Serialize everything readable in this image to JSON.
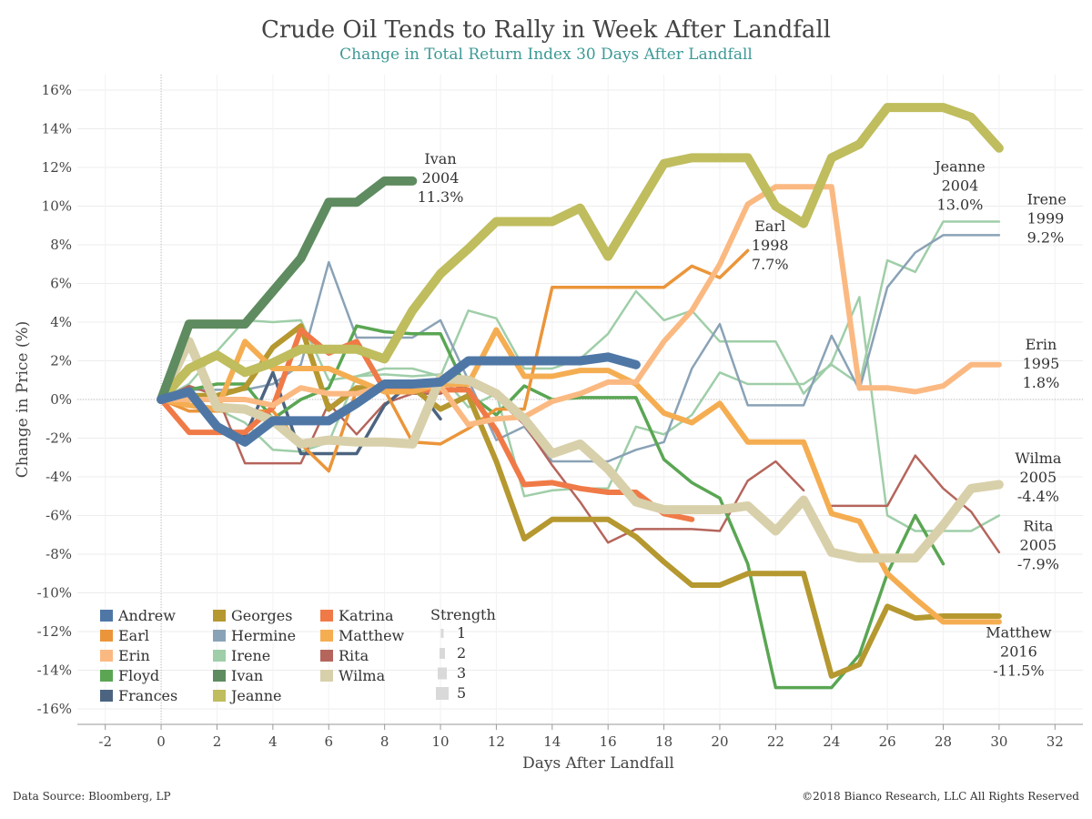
{
  "header": {
    "title": "Crude Oil Tends to Rally in Week After Landfall",
    "subtitle": "Change in Total Return Index 30 Days After Landfall"
  },
  "footer": {
    "source": "Data Source: Bloomberg, LP",
    "copyright": "©2018 Bianco Research, LLC All Rights Reserved"
  },
  "chart_data": {
    "type": "line",
    "title": "Crude Oil Tends to Rally in Week After Landfall",
    "subtitle": "Change in Total Return Index 30 Days After Landfall",
    "xlabel": "Days After Landfall",
    "ylabel": "Change in Price (%)",
    "xlim": [
      -3,
      33
    ],
    "ylim": [
      -16.8,
      16.8
    ],
    "x_ticks": [
      -2,
      0,
      2,
      4,
      6,
      8,
      10,
      12,
      14,
      16,
      18,
      20,
      22,
      24,
      26,
      28,
      30,
      32
    ],
    "x_tick_labels": [
      "-2",
      "0",
      "2",
      "4",
      "6",
      "8",
      "10",
      "12",
      "14",
      "16",
      "18",
      "20",
      "22",
      "24",
      "26",
      "28",
      "30",
      "32"
    ],
    "y_ticks": [
      16,
      14,
      12,
      10,
      8,
      6,
      4,
      2,
      0,
      -2,
      -4,
      -6,
      -8,
      -10,
      -12,
      -14,
      -16
    ],
    "y_tick_labels": [
      "16%",
      "14%",
      "12%",
      "10%",
      "8%",
      "6%",
      "4%",
      "2%",
      "0%",
      "-2%",
      "-4%",
      "-6%",
      "-8%",
      "-10%",
      "-12%",
      "-14%",
      "-16%"
    ],
    "grid": true,
    "legend_position": "bottom-left",
    "series": [
      {
        "name": "Irene",
        "color": "#9fcea8",
        "strength": 1,
        "x": [
          0,
          1,
          2,
          3,
          4,
          5,
          6,
          7,
          8,
          9,
          10,
          11,
          12,
          13,
          14,
          15,
          16,
          17,
          18,
          19,
          20,
          21,
          22,
          23,
          24,
          25,
          26,
          27,
          28,
          29,
          30
        ],
        "values": [
          0,
          -0.2,
          -0.5,
          -1.2,
          -2.6,
          -2.7,
          -2.2,
          1.2,
          1.3,
          1.2,
          1.3,
          -0.4,
          0.3,
          -5.0,
          -4.7,
          -4.6,
          -4.6,
          -1.4,
          -1.8,
          -0.8,
          1.4,
          0.8,
          0.8,
          0.8,
          1.8,
          0.8,
          7.2,
          6.6,
          9.2,
          9.2,
          9.2
        ]
      },
      {
        "name": "Irene (path 2)",
        "color": "#9fcea8",
        "strength": 1,
        "x": [
          0,
          1,
          2,
          3,
          4,
          5,
          6,
          7,
          8,
          9,
          10,
          11,
          12,
          13,
          14,
          15,
          16,
          17,
          18,
          19,
          20,
          21,
          22,
          23,
          24,
          25,
          26,
          27,
          28,
          29,
          30
        ],
        "values": [
          0,
          0.8,
          2.5,
          4.1,
          4.0,
          4.1,
          1.0,
          1.2,
          1.6,
          1.6,
          1.2,
          4.6,
          4.2,
          1.6,
          1.6,
          2.1,
          3.4,
          5.6,
          4.1,
          4.6,
          3.0,
          3.0,
          3.0,
          0.3,
          1.9,
          5.3,
          -6.0,
          -6.8,
          -6.8,
          -6.8,
          -6.0
        ]
      },
      {
        "name": "Hermine",
        "color": "#8aa2b6",
        "strength": 1,
        "x": [
          0,
          1,
          2,
          3,
          4,
          5,
          6,
          7,
          8,
          9,
          10,
          11,
          12,
          13,
          14,
          15,
          16,
          17,
          18,
          19,
          20,
          21,
          22,
          23,
          24,
          25,
          26,
          27,
          28,
          29,
          30
        ],
        "values": [
          0,
          0.5,
          0.5,
          0.5,
          0.8,
          1.8,
          7.1,
          3.2,
          3.2,
          3.2,
          4.1,
          1.0,
          -2.1,
          -1.4,
          -3.2,
          -3.2,
          -3.2,
          -2.6,
          -2.2,
          1.6,
          3.9,
          -0.3,
          -0.3,
          -0.3,
          3.3,
          0.5,
          5.8,
          7.6,
          8.5,
          8.5,
          8.5
        ]
      },
      {
        "name": "Rita",
        "color": "#b5655c",
        "strength": 1,
        "x": [
          0,
          1,
          2,
          3,
          4,
          5,
          6,
          7,
          8,
          9,
          10,
          11,
          12,
          13,
          14,
          15,
          16,
          17,
          18,
          19,
          20,
          21,
          22,
          23
        ],
        "values": [
          0,
          0.7,
          0.2,
          -3.3,
          -3.3,
          -3.3,
          -0.2,
          -1.8,
          -0.2,
          0.3,
          0.3,
          0.8,
          0.1,
          -1.3,
          -3.4,
          -5.3,
          -7.4,
          -6.7,
          -6.7,
          -6.7,
          -6.8,
          -4.2,
          -3.2,
          -4.7
        ]
      },
      {
        "name": "Rita (end)",
        "color": "#b5655c",
        "strength": 1,
        "x": [
          24,
          25,
          26,
          27,
          28,
          29,
          30
        ],
        "values": [
          -5.5,
          -5.5,
          -5.5,
          -2.9,
          -4.6,
          -5.8,
          -7.9
        ]
      },
      {
        "name": "Frances",
        "color": "#4c6480",
        "strength": 2,
        "x": [
          0,
          1,
          2,
          3,
          4,
          5,
          6,
          7,
          8,
          9,
          10
        ],
        "values": [
          0,
          0.5,
          -1.3,
          -1.9,
          1.4,
          -2.8,
          -2.8,
          -2.8,
          -0.3,
          0.9,
          -1.0
        ]
      },
      {
        "name": "Floyd",
        "color": "#5aa653",
        "strength": 2,
        "x": [
          0,
          1,
          2,
          3,
          4,
          5,
          6,
          7,
          8,
          9,
          10,
          11,
          12,
          13,
          14,
          15,
          16,
          17,
          18,
          19,
          20,
          21,
          22,
          23,
          24,
          25,
          26,
          27,
          28
        ],
        "values": [
          0,
          0.5,
          0.8,
          0.8,
          -1.0,
          0.0,
          0.6,
          3.8,
          3.5,
          3.4,
          3.4,
          0.3,
          -0.8,
          0.7,
          0.0,
          0.1,
          0.1,
          0.1,
          -3.1,
          -4.3,
          -5.1,
          -8.5,
          -14.9,
          -14.9,
          -14.9,
          -13.2,
          -9.0,
          -6.0,
          -8.5
        ]
      },
      {
        "name": "Earl",
        "color": "#eb953a",
        "strength": 2,
        "x": [
          0,
          1,
          2,
          3,
          4,
          5,
          6,
          7,
          8,
          9,
          10,
          11,
          12,
          13,
          14,
          15,
          16,
          17,
          18,
          19,
          20,
          21
        ],
        "values": [
          0,
          -0.6,
          -0.6,
          -0.6,
          -0.6,
          -2.3,
          -3.7,
          0.5,
          0.5,
          -2.2,
          -2.3,
          -1.5,
          -0.5,
          -0.5,
          5.8,
          5.8,
          5.8,
          5.8,
          5.8,
          6.9,
          6.3,
          7.7
        ]
      },
      {
        "name": "Georges",
        "color": "#b5982f",
        "strength": 3,
        "x": [
          0,
          1,
          2,
          3,
          4,
          5,
          6,
          7,
          8,
          9,
          10,
          11,
          12,
          13,
          14,
          15,
          16,
          17,
          18,
          19,
          20,
          21,
          22,
          23,
          24,
          25,
          26,
          27,
          28,
          29,
          30
        ],
        "values": [
          0,
          0.2,
          0.2,
          0.6,
          2.7,
          3.8,
          -0.5,
          0.6,
          0.6,
          0.6,
          -0.5,
          0.2,
          -3.2,
          -7.2,
          -6.2,
          -6.2,
          -6.2,
          -7.1,
          -8.4,
          -9.6,
          -9.6,
          -9.0,
          -9.0,
          -9.0,
          -14.3,
          -13.7,
          -10.7,
          -11.3,
          -11.2,
          -11.2,
          -11.2
        ]
      },
      {
        "name": "Katrina",
        "color": "#f07a47",
        "strength": 3,
        "x": [
          0,
          1,
          2,
          3,
          4,
          5,
          6,
          7,
          8,
          9,
          10,
          11,
          12,
          13,
          14,
          15,
          16,
          17,
          18,
          19
        ],
        "values": [
          0,
          -1.7,
          -1.7,
          -1.7,
          -0.4,
          3.6,
          2.4,
          3.0,
          0.5,
          0.5,
          0.5,
          0.5,
          -1.6,
          -4.4,
          -4.3,
          -4.6,
          -4.8,
          -4.8,
          -5.9,
          -6.2
        ]
      },
      {
        "name": "Matthew",
        "color": "#f5ad52",
        "strength": 3,
        "x": [
          0,
          1,
          2,
          3,
          4,
          5,
          6,
          7,
          8,
          9,
          10,
          11,
          12,
          13,
          14,
          15,
          16,
          17,
          18,
          19,
          20,
          21,
          22,
          23,
          24,
          25,
          26,
          27,
          28,
          29,
          30
        ],
        "values": [
          0,
          -0.3,
          -0.5,
          3.0,
          1.6,
          1.6,
          1.6,
          1.0,
          0.4,
          0.4,
          0.8,
          0.8,
          3.6,
          1.2,
          1.2,
          1.5,
          1.5,
          0.8,
          -0.7,
          -1.2,
          -0.2,
          -2.2,
          -2.2,
          -2.2,
          -5.9,
          -6.3,
          -9.0,
          -10.3,
          -11.5,
          -11.5,
          -11.5
        ]
      },
      {
        "name": "Erin",
        "color": "#fbb982",
        "strength": 3,
        "x": [
          0,
          1,
          2,
          3,
          4,
          5,
          6,
          7,
          8,
          9,
          10,
          11,
          12,
          13,
          14,
          15,
          16,
          17,
          18,
          19,
          20,
          21,
          22,
          23,
          24,
          25,
          26,
          27,
          28,
          29,
          30
        ],
        "values": [
          0,
          0.0,
          0.0,
          0.0,
          -0.3,
          0.6,
          0.3,
          0.3,
          0.7,
          0.7,
          0.7,
          -1.3,
          -1.0,
          -0.9,
          -0.1,
          0.3,
          0.9,
          0.9,
          3.0,
          4.6,
          7.0,
          10.1,
          11.0,
          11.0,
          11.0,
          0.6,
          0.6,
          0.4,
          0.7,
          1.8,
          1.8
        ]
      },
      {
        "name": "Wilma",
        "color": "#d8d0aa",
        "strength": 5,
        "x": [
          0,
          1,
          2,
          3,
          4,
          5,
          6,
          7,
          8,
          9,
          10,
          11,
          12,
          13,
          14,
          15,
          16,
          17,
          18,
          19,
          20,
          21,
          22,
          23,
          24,
          25,
          26,
          27,
          28,
          29,
          30
        ],
        "values": [
          0,
          3.0,
          -0.4,
          -0.5,
          -1.1,
          -2.3,
          -2.1,
          -2.2,
          -2.2,
          -2.3,
          1.1,
          1.0,
          0.3,
          -1.0,
          -2.8,
          -2.3,
          -3.6,
          -5.3,
          -5.7,
          -5.7,
          -5.7,
          -5.5,
          -6.8,
          -5.2,
          -7.9,
          -8.2,
          -8.2,
          -8.2,
          -6.5,
          -4.6,
          -4.4
        ]
      },
      {
        "name": "Jeanne",
        "color": "#bfbd5d",
        "strength": 5,
        "x": [
          0,
          1,
          2,
          3,
          4,
          5,
          6,
          7,
          8,
          9,
          10,
          11,
          12,
          13,
          14,
          15,
          16,
          17,
          18,
          19,
          20,
          21,
          22,
          23,
          24,
          25,
          26,
          27,
          28,
          29,
          30
        ],
        "values": [
          0,
          1.6,
          2.3,
          1.4,
          1.9,
          2.6,
          2.6,
          2.6,
          2.1,
          4.6,
          6.5,
          7.8,
          9.2,
          9.2,
          9.2,
          9.9,
          7.4,
          9.8,
          12.2,
          12.5,
          12.5,
          12.5,
          10.0,
          9.1,
          12.5,
          13.2,
          15.1,
          15.1,
          15.1,
          14.6,
          13.0
        ]
      },
      {
        "name": "Ivan",
        "color": "#5e8b5f",
        "strength": 5,
        "x": [
          0,
          1,
          2,
          3,
          4,
          5,
          6,
          7,
          8,
          9
        ],
        "values": [
          0,
          3.9,
          3.9,
          3.9,
          5.6,
          7.3,
          10.2,
          10.2,
          11.3,
          11.3
        ]
      },
      {
        "name": "Andrew",
        "color": "#4f77a6",
        "strength": 5,
        "x": [
          0,
          1,
          2,
          3,
          4,
          5,
          6,
          7,
          8,
          9,
          10,
          11,
          12,
          13,
          14,
          15,
          16,
          17
        ],
        "values": [
          0,
          0.4,
          -1.4,
          -2.2,
          -1.1,
          -1.1,
          -1.1,
          -0.2,
          0.8,
          0.8,
          0.9,
          2.0,
          2.0,
          2.0,
          2.0,
          2.0,
          2.2,
          1.8
        ]
      }
    ],
    "annotations": [
      {
        "lines": [
          "Ivan",
          "2004",
          "11.3%"
        ],
        "x": 10.0,
        "y": 12.2,
        "anchor": "middle"
      },
      {
        "lines": [
          "Earl",
          "1998",
          "7.7%"
        ],
        "x": 21.8,
        "y": 8.7,
        "anchor": "middle"
      },
      {
        "lines": [
          "Jeanne",
          "2004",
          "13.0%"
        ],
        "x": 28.6,
        "y": 11.8,
        "anchor": "middle"
      },
      {
        "lines": [
          "Irene",
          "1999",
          "9.2%"
        ],
        "x": 31.0,
        "y": 10.1,
        "anchor": "start"
      },
      {
        "lines": [
          "Erin",
          "1995",
          "1.8%"
        ],
        "x": 31.5,
        "y": 2.6,
        "anchor": "middle"
      },
      {
        "lines": [
          "Wilma",
          "2005",
          "-4.4%"
        ],
        "x": 31.4,
        "y": -3.3,
        "anchor": "middle"
      },
      {
        "lines": [
          "Rita",
          "2005",
          "-7.9%"
        ],
        "x": 31.4,
        "y": -6.8,
        "anchor": "middle"
      },
      {
        "lines": [
          "Matthew",
          "2016",
          "-11.5%"
        ],
        "x": 30.7,
        "y": -12.3,
        "anchor": "middle"
      }
    ],
    "legend": {
      "entries": [
        {
          "name": "Andrew",
          "color": "#4f77a6"
        },
        {
          "name": "Earl",
          "color": "#eb953a"
        },
        {
          "name": "Erin",
          "color": "#fbb982"
        },
        {
          "name": "Floyd",
          "color": "#5aa653"
        },
        {
          "name": "Frances",
          "color": "#4c6480"
        },
        {
          "name": "Georges",
          "color": "#b5982f"
        },
        {
          "name": "Hermine",
          "color": "#8aa2b6"
        },
        {
          "name": "Irene",
          "color": "#9fcea8"
        },
        {
          "name": "Ivan",
          "color": "#5e8b5f"
        },
        {
          "name": "Jeanne",
          "color": "#bfbd5d"
        },
        {
          "name": "Katrina",
          "color": "#f07a47"
        },
        {
          "name": "Matthew",
          "color": "#f5ad52"
        },
        {
          "name": "Rita",
          "color": "#b5655c"
        },
        {
          "name": "Wilma",
          "color": "#d8d0aa"
        }
      ],
      "strength_title": "Strength",
      "strength_levels": [
        "1",
        "2",
        "3",
        "5"
      ]
    }
  }
}
